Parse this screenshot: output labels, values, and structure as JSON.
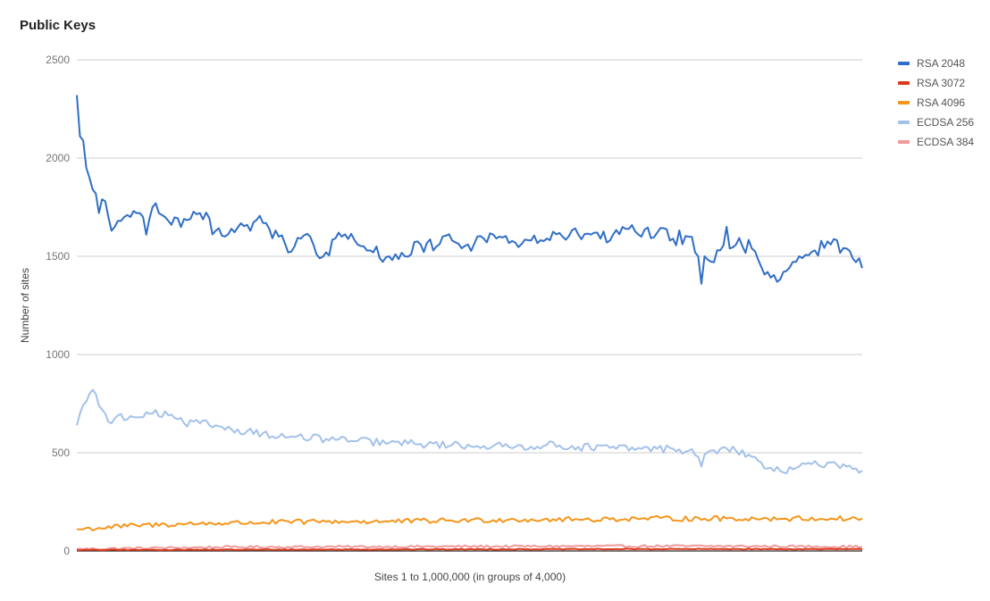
{
  "chart_data": {
    "type": "line",
    "title": "Public Keys",
    "xlabel": "Sites 1 to 1,000,000 (in groups of 4,000)",
    "ylabel": "Number of sites",
    "ylim": [
      0,
      2500
    ],
    "yticks": [
      0,
      500,
      1000,
      1500,
      2000,
      2500
    ],
    "grid": true,
    "legend_position": "right",
    "x": {
      "start": 1,
      "end": 250,
      "step": 1,
      "unit": "group of 4,000 sites"
    },
    "series": [
      {
        "name": "RSA 2048",
        "color": "#2f6ec6",
        "anchors": [
          [
            1,
            2320
          ],
          [
            2,
            2110
          ],
          [
            3,
            2090
          ],
          [
            4,
            1950
          ],
          [
            5,
            1900
          ],
          [
            6,
            1840
          ],
          [
            7,
            1820
          ],
          [
            8,
            1720
          ],
          [
            9,
            1790
          ],
          [
            10,
            1780
          ],
          [
            11,
            1700
          ],
          [
            12,
            1630
          ],
          [
            13,
            1650
          ],
          [
            14,
            1680
          ],
          [
            15,
            1680
          ],
          [
            16,
            1700
          ],
          [
            17,
            1710
          ],
          [
            18,
            1700
          ],
          [
            19,
            1730
          ],
          [
            20,
            1720
          ],
          [
            21,
            1720
          ],
          [
            22,
            1700
          ],
          [
            23,
            1610
          ],
          [
            24,
            1690
          ],
          [
            25,
            1750
          ],
          [
            26,
            1770
          ],
          [
            27,
            1720
          ],
          [
            28,
            1710
          ],
          [
            29,
            1700
          ],
          [
            30,
            1680
          ],
          [
            35,
            1690
          ],
          [
            40,
            1720
          ],
          [
            45,
            1630
          ],
          [
            50,
            1640
          ],
          [
            55,
            1660
          ],
          [
            60,
            1670
          ],
          [
            62,
            1640
          ],
          [
            65,
            1600
          ],
          [
            68,
            1520
          ],
          [
            70,
            1550
          ],
          [
            72,
            1590
          ],
          [
            75,
            1600
          ],
          [
            78,
            1490
          ],
          [
            80,
            1520
          ],
          [
            85,
            1600
          ],
          [
            90,
            1560
          ],
          [
            95,
            1520
          ],
          [
            100,
            1500
          ],
          [
            105,
            1500
          ],
          [
            110,
            1560
          ],
          [
            115,
            1550
          ],
          [
            120,
            1580
          ],
          [
            125,
            1560
          ],
          [
            130,
            1590
          ],
          [
            135,
            1600
          ],
          [
            140,
            1570
          ],
          [
            145,
            1580
          ],
          [
            150,
            1590
          ],
          [
            155,
            1600
          ],
          [
            160,
            1610
          ],
          [
            165,
            1620
          ],
          [
            170,
            1580
          ],
          [
            175,
            1640
          ],
          [
            180,
            1600
          ],
          [
            185,
            1620
          ],
          [
            190,
            1590
          ],
          [
            195,
            1600
          ],
          [
            197,
            1520
          ],
          [
            198,
            1500
          ],
          [
            199,
            1360
          ],
          [
            200,
            1500
          ],
          [
            203,
            1470
          ],
          [
            205,
            1530
          ],
          [
            207,
            1650
          ],
          [
            208,
            1540
          ],
          [
            210,
            1560
          ],
          [
            215,
            1540
          ],
          [
            220,
            1420
          ],
          [
            223,
            1370
          ],
          [
            225,
            1420
          ],
          [
            230,
            1500
          ],
          [
            235,
            1530
          ],
          [
            240,
            1560
          ],
          [
            245,
            1540
          ],
          [
            248,
            1470
          ],
          [
            250,
            1440
          ]
        ],
        "noise": 40
      },
      {
        "name": "ECDSA 256",
        "color": "#a3c1ea",
        "anchors": [
          [
            1,
            640
          ],
          [
            2,
            700
          ],
          [
            4,
            760
          ],
          [
            5,
            800
          ],
          [
            6,
            820
          ],
          [
            7,
            800
          ],
          [
            8,
            740
          ],
          [
            9,
            720
          ],
          [
            10,
            700
          ],
          [
            12,
            650
          ],
          [
            14,
            690
          ],
          [
            17,
            670
          ],
          [
            20,
            680
          ],
          [
            25,
            700
          ],
          [
            30,
            690
          ],
          [
            35,
            650
          ],
          [
            40,
            650
          ],
          [
            45,
            640
          ],
          [
            50,
            620
          ],
          [
            55,
            610
          ],
          [
            60,
            600
          ],
          [
            65,
            580
          ],
          [
            70,
            580
          ],
          [
            80,
            570
          ],
          [
            90,
            560
          ],
          [
            100,
            550
          ],
          [
            110,
            545
          ],
          [
            120,
            540
          ],
          [
            130,
            535
          ],
          [
            140,
            530
          ],
          [
            150,
            540
          ],
          [
            160,
            530
          ],
          [
            170,
            525
          ],
          [
            180,
            520
          ],
          [
            190,
            520
          ],
          [
            195,
            510
          ],
          [
            198,
            480
          ],
          [
            199,
            430
          ],
          [
            200,
            490
          ],
          [
            205,
            520
          ],
          [
            210,
            510
          ],
          [
            215,
            480
          ],
          [
            218,
            450
          ],
          [
            220,
            420
          ],
          [
            225,
            400
          ],
          [
            230,
            430
          ],
          [
            240,
            450
          ],
          [
            245,
            430
          ],
          [
            248,
            420
          ],
          [
            250,
            410
          ]
        ],
        "noise": 20
      },
      {
        "name": "RSA 4096",
        "color": "#f5951a",
        "anchors": [
          [
            1,
            110
          ],
          [
            20,
            130
          ],
          [
            40,
            140
          ],
          [
            60,
            145
          ],
          [
            80,
            150
          ],
          [
            100,
            150
          ],
          [
            120,
            155
          ],
          [
            140,
            160
          ],
          [
            160,
            160
          ],
          [
            180,
            165
          ],
          [
            200,
            165
          ],
          [
            220,
            165
          ],
          [
            240,
            165
          ],
          [
            250,
            165
          ]
        ],
        "noise": 13
      },
      {
        "name": "ECDSA 384",
        "color": "#ef9a9a",
        "anchors": [
          [
            1,
            10
          ],
          [
            50,
            20
          ],
          [
            100,
            22
          ],
          [
            150,
            24
          ],
          [
            200,
            25
          ],
          [
            250,
            22
          ]
        ],
        "noise": 6
      },
      {
        "name": "RSA 3072",
        "color": "#d83a1c",
        "anchors": [
          [
            1,
            5
          ],
          [
            100,
            8
          ],
          [
            200,
            10
          ],
          [
            250,
            9
          ]
        ],
        "noise": 2
      }
    ]
  },
  "legend": [
    "RSA 2048",
    "RSA 3072",
    "RSA 4096",
    "ECDSA 256",
    "ECDSA 384"
  ],
  "legend_colors": [
    "#2f6ec6",
    "#d83a1c",
    "#f5951a",
    "#a3c1ea",
    "#ef9a9a"
  ]
}
